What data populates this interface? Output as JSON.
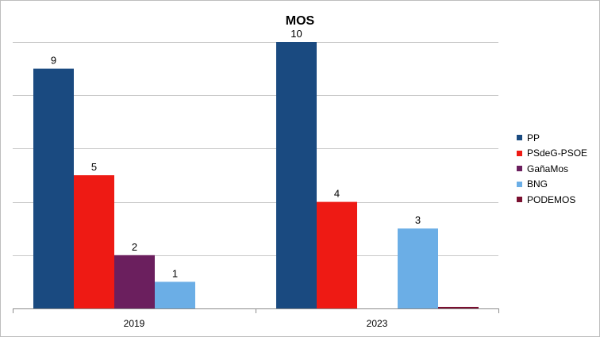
{
  "chart_data": {
    "type": "bar",
    "title": "MOS",
    "categories": [
      "2019",
      "2023"
    ],
    "series": [
      {
        "name": "PP",
        "color": "#1a4a80",
        "values": [
          9,
          10
        ]
      },
      {
        "name": "PSdeG-PSOE",
        "color": "#ee1a14",
        "values": [
          5,
          4
        ]
      },
      {
        "name": "GañaMos",
        "color": "#6b1f5e",
        "values": [
          2,
          0
        ]
      },
      {
        "name": "BNG",
        "color": "#6baee6",
        "values": [
          1,
          3
        ]
      },
      {
        "name": "PODEMOS",
        "color": "#7a1030",
        "values": [
          0,
          0
        ]
      }
    ],
    "data_labels": [
      [
        "9",
        "5",
        "2",
        "1",
        ""
      ],
      [
        "10",
        "4",
        "",
        "3",
        ""
      ]
    ],
    "ylim": [
      0,
      10
    ],
    "grid": true,
    "legend_position": "right"
  }
}
